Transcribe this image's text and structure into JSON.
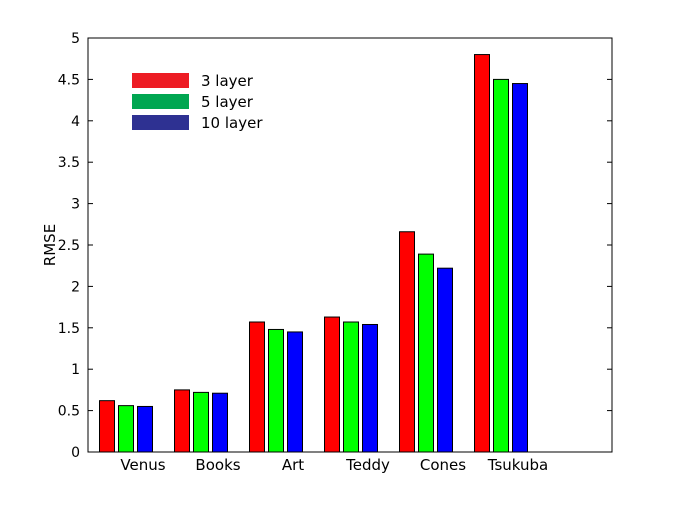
{
  "chart_data": {
    "type": "bar",
    "title": "",
    "xlabel": "",
    "ylabel": "RMSE",
    "ylim": [
      0,
      5
    ],
    "yticks": [
      "0",
      "0.5",
      "1",
      "1.5",
      "2",
      "2.5",
      "3",
      "3.5",
      "4",
      "4.5",
      "5"
    ],
    "categories": [
      "Venus",
      "Books",
      "Art",
      "Teddy",
      "Cones",
      "Tsukuba"
    ],
    "series": [
      {
        "name": "3 layer",
        "color": "#ff0000",
        "values": [
          0.62,
          0.75,
          1.57,
          1.63,
          2.66,
          4.8
        ]
      },
      {
        "name": "5 layer",
        "color": "#00ff00",
        "values": [
          0.56,
          0.72,
          1.48,
          1.57,
          2.39,
          4.5
        ]
      },
      {
        "name": "10 layer",
        "color": "#0000ff",
        "values": [
          0.55,
          0.71,
          1.45,
          1.54,
          2.22,
          4.45
        ]
      }
    ],
    "legend": {
      "placement": "top-left",
      "swatch_colors": [
        "#ed1c24",
        "#00a651",
        "#2e3192"
      ]
    },
    "grid": false
  }
}
